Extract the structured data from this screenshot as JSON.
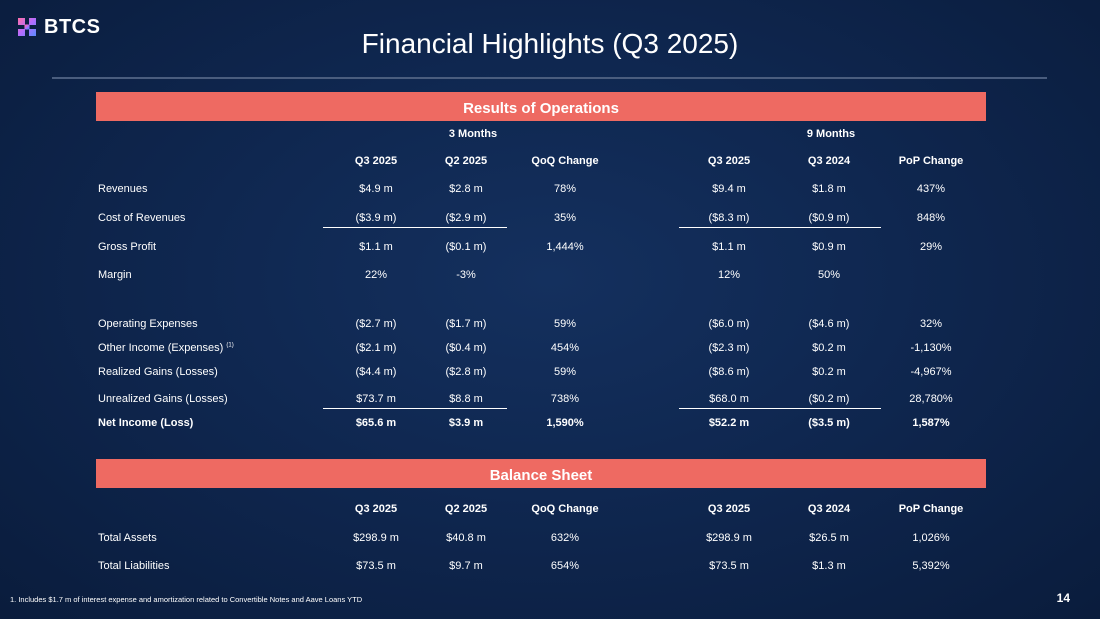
{
  "brand": {
    "name": "BTCS"
  },
  "title": "Financial Highlights (Q3 2025)",
  "results": {
    "heading": "Results of Operations",
    "group_3m": "3 Months",
    "group_9m": "9 Months",
    "columns": [
      "Q3 2025",
      "Q2 2025",
      "QoQ Change",
      "Q3 2025",
      "Q3 2024",
      "PoP Change"
    ],
    "rows": [
      {
        "label": "Revenues",
        "sup": "",
        "values": [
          "$4.9 m",
          "$2.8 m",
          "78%",
          "$9.4 m",
          "$1.8 m",
          "437%"
        ]
      },
      {
        "label": "Cost of Revenues",
        "sup": "",
        "values": [
          "($3.9 m)",
          "($2.9 m)",
          "35%",
          "($8.3 m)",
          "($0.9 m)",
          "848%"
        ]
      },
      {
        "label": "Gross Profit",
        "sup": "",
        "values": [
          "$1.1 m",
          "($0.1 m)",
          "1,444%",
          "$1.1 m",
          "$0.9 m",
          "29%"
        ]
      },
      {
        "label": "Margin",
        "sup": "",
        "values": [
          "22%",
          "-3%",
          "",
          "12%",
          "50%",
          ""
        ]
      },
      {
        "label": "Operating Expenses",
        "sup": "",
        "values": [
          "($2.7 m)",
          "($1.7 m)",
          "59%",
          "($6.0 m)",
          "($4.6 m)",
          "32%"
        ]
      },
      {
        "label": "Other Income (Expenses)",
        "sup": "(1)",
        "values": [
          "($2.1 m)",
          "($0.4 m)",
          "454%",
          "($2.3 m)",
          "$0.2 m",
          "-1,130%"
        ]
      },
      {
        "label": "Realized Gains (Losses)",
        "sup": "",
        "values": [
          "($4.4 m)",
          "($2.8 m)",
          "59%",
          "($8.6 m)",
          "$0.2 m",
          "-4,967%"
        ]
      },
      {
        "label": "Unrealized Gains (Losses)",
        "sup": "",
        "values": [
          "$73.7 m",
          "$8.8 m",
          "738%",
          "$68.0 m",
          "($0.2 m)",
          "28,780%"
        ]
      },
      {
        "label": "Net Income (Loss)",
        "sup": "",
        "values": [
          "$65.6 m",
          "$3.9 m",
          "1,590%",
          "$52.2 m",
          "($3.5 m)",
          "1,587%"
        ]
      }
    ]
  },
  "balance": {
    "heading": "Balance Sheet",
    "columns": [
      "Q3 2025",
      "Q2 2025",
      "QoQ Change",
      "Q3 2025",
      "Q3 2024",
      "PoP Change"
    ],
    "rows": [
      {
        "label": "Total Assets",
        "values": [
          "$298.9 m",
          "$40.8 m",
          "632%",
          "$298.9 m",
          "$26.5 m",
          "1,026%"
        ]
      },
      {
        "label": "Total Liabilities",
        "values": [
          "$73.5 m",
          "$9.7 m",
          "654%",
          "$73.5 m",
          "$1.3 m",
          "5,392%"
        ]
      }
    ]
  },
  "footnote": "1. Includes $1.7 m of interest expense and amortization related to Convertible Notes and Aave Loans YTD",
  "page_number": "14",
  "colors": {
    "background": "#0f2750",
    "band": "#ee6a62",
    "text": "#ffffff"
  }
}
